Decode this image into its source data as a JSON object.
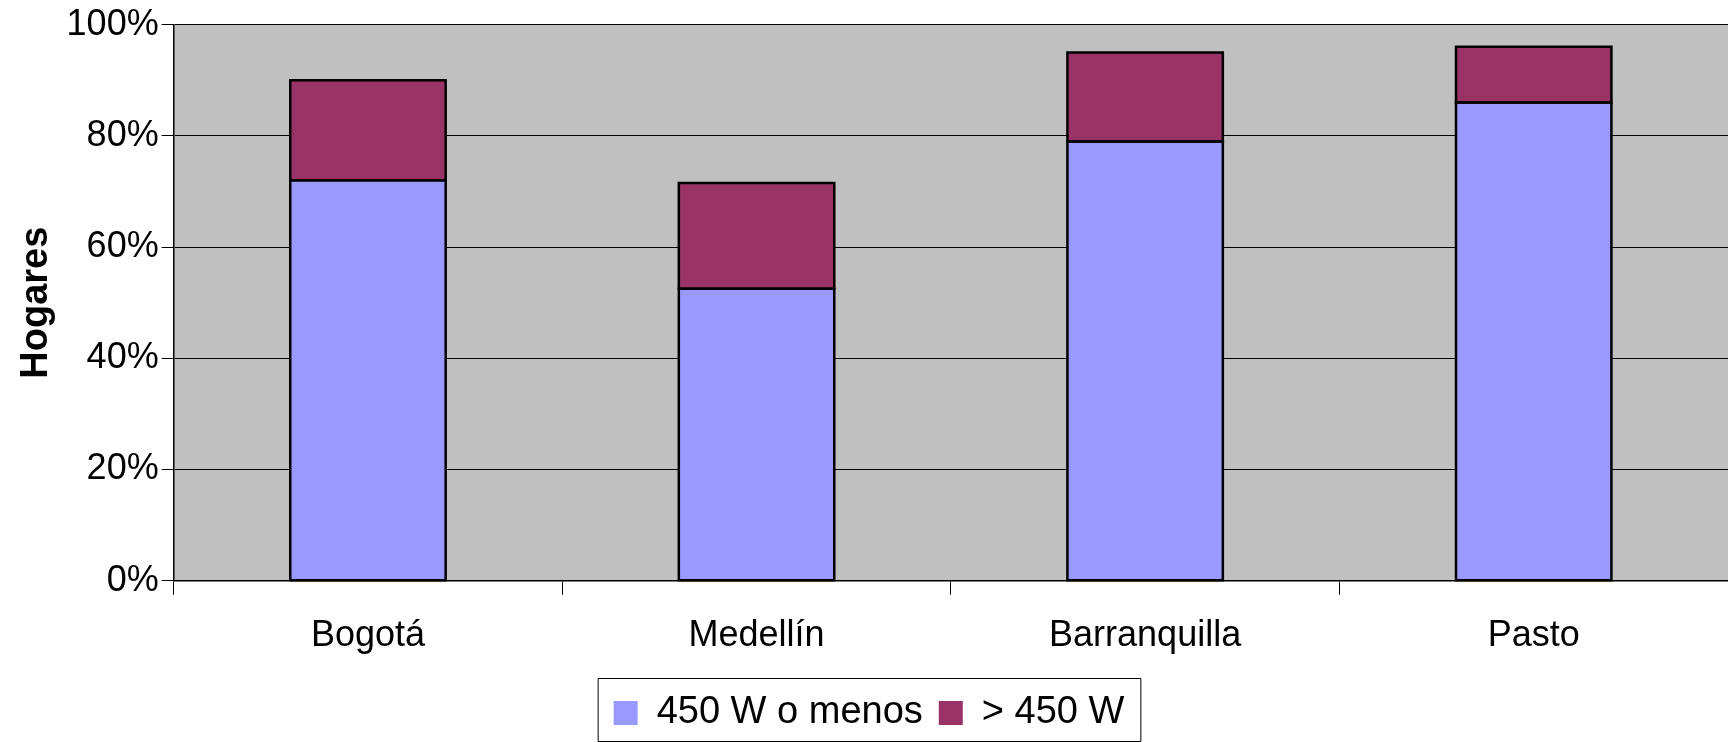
{
  "chart_data": {
    "type": "bar",
    "ylabel": "Hogares",
    "categories": [
      "Bogotá",
      "Medellín",
      "Barranquilla",
      "Pasto"
    ],
    "stacked": true,
    "series": [
      {
        "name": "450 W o menos",
        "color": "#9999ff",
        "values": [
          72,
          52.5,
          79,
          86
        ]
      },
      {
        "name": "> 450 W",
        "color": "#993366",
        "values": [
          18,
          19,
          16,
          10
        ]
      }
    ],
    "ylim": [
      0,
      100
    ],
    "yticks": [
      {
        "value": 0,
        "label": "0%"
      },
      {
        "value": 20,
        "label": "20%"
      },
      {
        "value": 40,
        "label": "40%"
      },
      {
        "value": 60,
        "label": "60%"
      },
      {
        "value": 80,
        "label": "80%"
      },
      {
        "value": 100,
        "label": "100%"
      }
    ],
    "grid": "y",
    "legend": "bottom"
  }
}
